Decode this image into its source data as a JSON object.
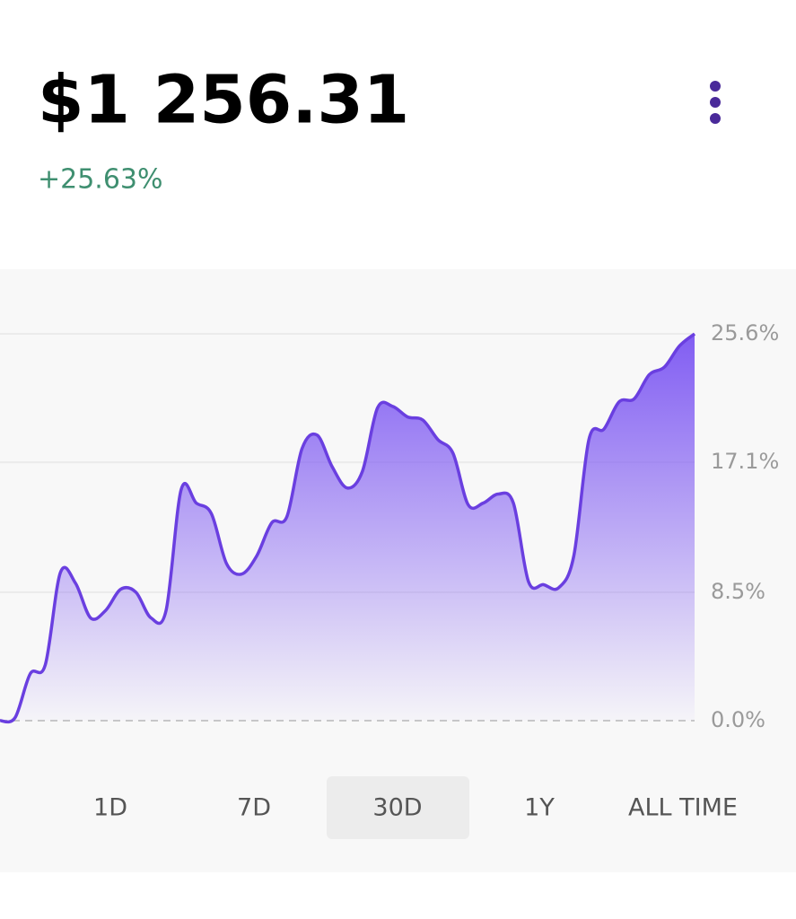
{
  "header": {
    "price": "$1 256.31",
    "change": "+25.63%"
  },
  "chart_data": {
    "type": "line",
    "values": [
      0,
      0.2,
      3.1,
      3.7,
      9.8,
      9.1,
      6.8,
      7.3,
      8.7,
      8.5,
      6.8,
      7.3,
      15.3,
      14.4,
      13.7,
      10.4,
      9.7,
      10.9,
      13.1,
      13.5,
      18.0,
      18.9,
      16.8,
      15.4,
      16.5,
      20.7,
      20.8,
      20.1,
      19.9,
      18.6,
      17.7,
      14.3,
      14.4,
      15.0,
      14.4,
      9.2,
      9.0,
      8.8,
      10.9,
      18.6,
      19.3,
      21.1,
      21.3,
      22.9,
      23.4,
      24.8,
      25.6
    ],
    "color": "#6a3fe0",
    "ylim": [
      0,
      25.6
    ],
    "yticks": [
      {
        "value": 0,
        "label": "0.0%"
      },
      {
        "value": 8.5,
        "label": "8.5%"
      },
      {
        "value": 17.1,
        "label": "17.1%"
      },
      {
        "value": 25.6,
        "label": "25.6%"
      }
    ],
    "grid": true
  },
  "tabs": [
    "1D",
    "7D",
    "30D",
    "1Y",
    "ALL TIME"
  ],
  "selected_tab": 2
}
